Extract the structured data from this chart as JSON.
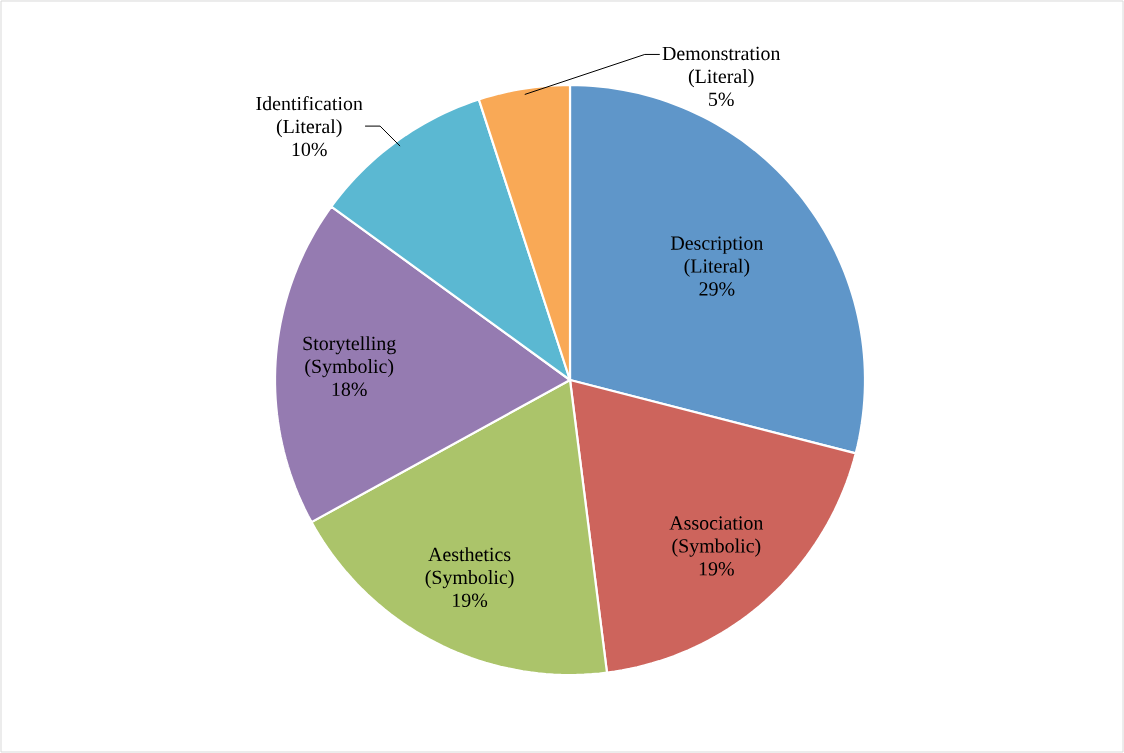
{
  "chart_data": {
    "type": "pie",
    "categories": [
      "Description (Literal)",
      "Association (Symbolic)",
      "Aesthetics (Symbolic)",
      "Storytelling (Symbolic)",
      "Identification (Literal)",
      "Demonstration (Literal)"
    ],
    "values": [
      29,
      19,
      19,
      18,
      10,
      5
    ],
    "value_labels": [
      "29%",
      "19%",
      "19%",
      "18%",
      "10%",
      "5%"
    ],
    "colors": [
      "#5f96c9",
      "#cd645c",
      "#abc46a",
      "#957bb1",
      "#5bb8d2",
      "#f9a956"
    ]
  }
}
